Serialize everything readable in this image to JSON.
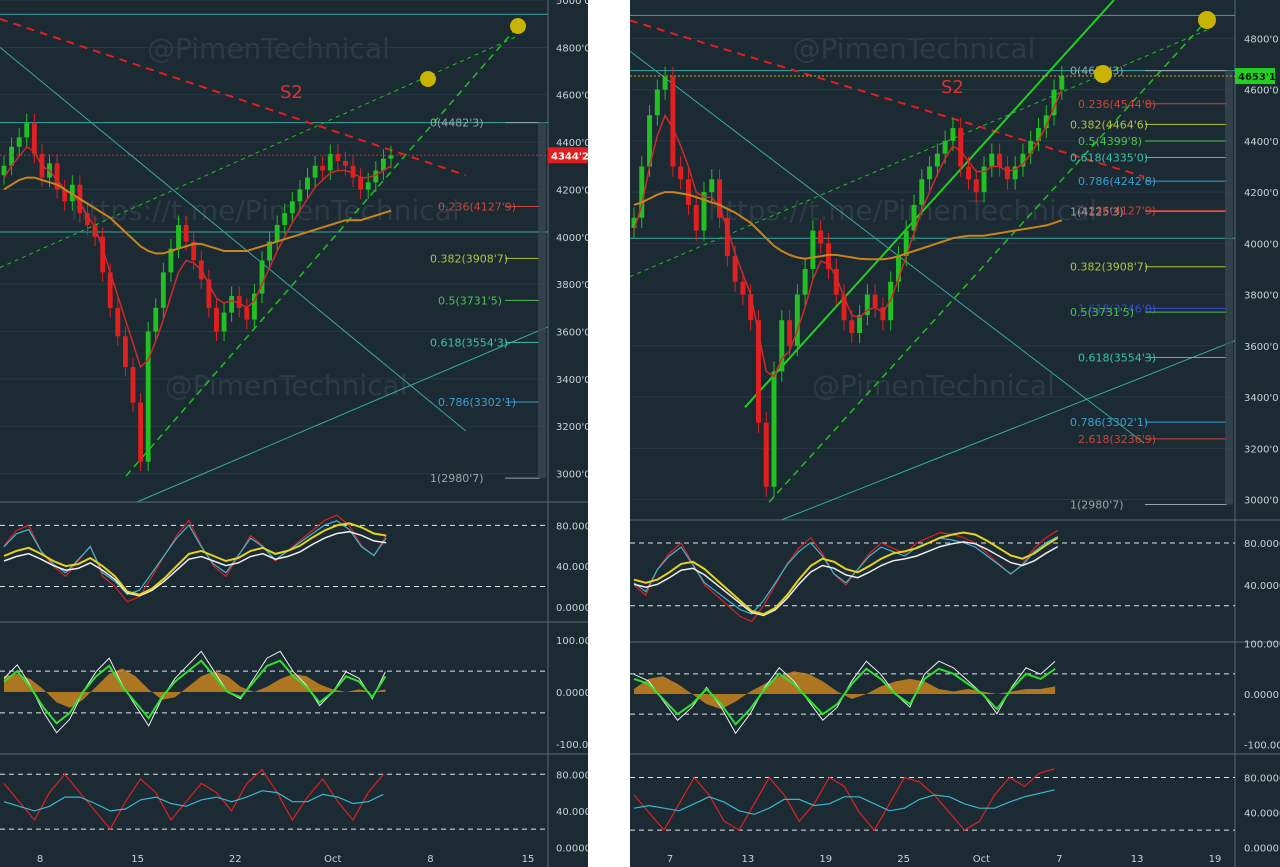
{
  "colors": {
    "background": "#1b2a33",
    "grid": "#2a3a44",
    "up": "#22c022",
    "down": "#e02020",
    "teal": "#3aa8a0",
    "fib_gray": "#9aa4aa",
    "accent_gold": "#c8b400"
  },
  "watermarks": {
    "brand": "@PimenTechnical",
    "url": "https://t.me/PimenTechnical"
  },
  "chart_data": [
    {
      "id": "left",
      "type": "candlestick",
      "annotation": "S2",
      "last_price_tag": "4344'2",
      "price_axis": {
        "ticks": [
          "5000'0",
          "4800'0",
          "4600'0",
          "4400'0",
          "4200'0",
          "4000'0",
          "3800'0",
          "3600'0",
          "3400'0",
          "3200'0",
          "3000'0"
        ],
        "ylim": [
          2880,
          5000
        ]
      },
      "x_ticks": [
        "8",
        "15",
        "22",
        "Oct",
        "8",
        "15"
      ],
      "fib_levels": [
        {
          "label": "0(4482'3)",
          "value": 4482.3,
          "color": "#9aa4aa"
        },
        {
          "label": "0.236(4127'9)",
          "value": 4127.9,
          "color": "#c8463c"
        },
        {
          "label": "0.382(3908'7)",
          "value": 3908.7,
          "color": "#b7c23a"
        },
        {
          "label": "0.5(3731'5)",
          "value": 3731.5,
          "color": "#4cc24c"
        },
        {
          "label": "0.618(3554'3)",
          "value": 3554.3,
          "color": "#3ac2a8"
        },
        {
          "label": "0.786(3302'1)",
          "value": 3302.1,
          "color": "#3aa0d2"
        },
        {
          "label": "1(2980'7)",
          "value": 2980.7,
          "color": "#9aa4aa"
        }
      ],
      "osc1_ticks": [
        "80.0000",
        "40.0000",
        "0.0000"
      ],
      "osc2_ticks": [
        "100.0000",
        "0.0000",
        "-100.0000"
      ],
      "osc3_ticks": [
        "80.0000",
        "40.0000",
        "0.0000"
      ],
      "series": {
        "close": [
          4300,
          4380,
          4420,
          4480,
          4350,
          4250,
          4310,
          4200,
          4150,
          4220,
          4100,
          4050,
          4000,
          3850,
          3700,
          3580,
          3450,
          3300,
          3050,
          3600,
          3700,
          3850,
          3950,
          4050,
          3980,
          3900,
          3820,
          3700,
          3600,
          3680,
          3750,
          3700,
          3650,
          3760,
          3900,
          3980,
          4050,
          4100,
          4150,
          4200,
          4250,
          4300,
          4280,
          4350,
          4320,
          4300,
          4250,
          4200,
          4230,
          4280,
          4330,
          4344
        ],
        "ma_fast": [
          4250,
          4300,
          4340,
          4380,
          4360,
          4300,
          4280,
          4240,
          4200,
          4180,
          4140,
          4090,
          4040,
          3950,
          3850,
          3750,
          3650,
          3550,
          3450,
          3480,
          3560,
          3650,
          3750,
          3850,
          3900,
          3890,
          3860,
          3800,
          3740,
          3720,
          3730,
          3720,
          3700,
          3730,
          3800,
          3870,
          3940,
          4000,
          4060,
          4110,
          4160,
          4210,
          4240,
          4270,
          4280,
          4280,
          4270,
          4250,
          4250,
          4260,
          4280,
          4300
        ],
        "ma_slow": [
          4200,
          4220,
          4240,
          4250,
          4250,
          4240,
          4230,
          4220,
          4200,
          4180,
          4160,
          4140,
          4120,
          4100,
          4080,
          4050,
          4020,
          3990,
          3960,
          3940,
          3930,
          3930,
          3940,
          3950,
          3960,
          3970,
          3970,
          3960,
          3950,
          3940,
          3940,
          3940,
          3940,
          3950,
          3960,
          3970,
          3980,
          3990,
          4000,
          4010,
          4020,
          4030,
          4040,
          4050,
          4060,
          4070,
          4070,
          4070,
          4080,
          4090,
          4100,
          4110
        ],
        "osc1_a": [
          60,
          75,
          80,
          55,
          40,
          30,
          45,
          60,
          30,
          20,
          5,
          10,
          30,
          50,
          70,
          85,
          60,
          40,
          30,
          50,
          70,
          60,
          45,
          55,
          65,
          75,
          85,
          90,
          80,
          60,
          50,
          70
        ],
        "osc1_b": [
          50,
          55,
          58,
          52,
          45,
          40,
          42,
          48,
          40,
          30,
          15,
          12,
          18,
          28,
          40,
          52,
          55,
          50,
          45,
          48,
          55,
          58,
          52,
          55,
          60,
          68,
          75,
          80,
          82,
          78,
          72,
          70
        ],
        "osc2_main": [
          20,
          40,
          10,
          -30,
          -60,
          -40,
          0,
          30,
          50,
          10,
          -20,
          -50,
          -10,
          20,
          40,
          60,
          30,
          0,
          -10,
          20,
          50,
          60,
          30,
          10,
          -20,
          0,
          30,
          20,
          -10,
          30
        ],
        "osc2_hist": [
          30,
          35,
          25,
          5,
          -20,
          -30,
          -15,
          10,
          35,
          45,
          30,
          5,
          -15,
          -10,
          10,
          30,
          40,
          30,
          10,
          0,
          10,
          25,
          35,
          30,
          15,
          5,
          0,
          5,
          0,
          5
        ],
        "osc3_a": [
          70,
          50,
          30,
          60,
          80,
          60,
          40,
          20,
          50,
          75,
          60,
          30,
          50,
          70,
          60,
          40,
          70,
          85,
          60,
          30,
          55,
          75,
          50,
          30,
          60,
          80
        ],
        "osc3_b": [
          50,
          45,
          40,
          45,
          55,
          55,
          48,
          40,
          42,
          52,
          55,
          48,
          45,
          52,
          55,
          50,
          55,
          62,
          60,
          50,
          50,
          58,
          55,
          48,
          50,
          58
        ]
      }
    },
    {
      "id": "right",
      "type": "candlestick",
      "annotation": "S2",
      "last_price_tag": "4653'1",
      "price_axis": {
        "ticks": [
          "4800'0",
          "4600'0",
          "4400'0",
          "4200'0",
          "4000'0",
          "3800'0",
          "3600'0",
          "3400'0",
          "3200'0",
          "3000'0"
        ],
        "ylim": [
          2920,
          4950
        ]
      },
      "x_ticks": [
        "7",
        "13",
        "19",
        "25",
        "Oct",
        "7",
        "13",
        "19"
      ],
      "fib_levels": [
        {
          "label": "0(4674'3)",
          "value": 4674.3,
          "color": "#9aa4aa"
        },
        {
          "label": "0.236(4544'8)",
          "value": 4544.8,
          "color": "#c8463c"
        },
        {
          "label": "0.382(4464'6)",
          "value": 4464.6,
          "color": "#b7c23a"
        },
        {
          "label": "0.5(4399'8)",
          "value": 4399.8,
          "color": "#4cc24c"
        },
        {
          "label": "0.618(4335'0)",
          "value": 4335.0,
          "color": "#3ac2a8"
        },
        {
          "label": "0.786(4242'8)",
          "value": 4242.8,
          "color": "#3aa0d2"
        },
        {
          "label": "1(4125'3)",
          "value": 4125.3,
          "color": "#9aa4aa"
        },
        {
          "label": "0.236(4127'9)",
          "value": 4127.9,
          "color": "#c8463c"
        },
        {
          "label": "0.382(3908'7)",
          "value": 3908.7,
          "color": "#b7c23a"
        },
        {
          "label": "1.618(3746'0)",
          "value": 3746.0,
          "color": "#3a4ad2"
        },
        {
          "label": "0.5(3731'5)",
          "value": 3731.5,
          "color": "#4cc24c"
        },
        {
          "label": "0.618(3554'3)",
          "value": 3554.3,
          "color": "#3ac2a8"
        },
        {
          "label": "0.786(3302'1)",
          "value": 3302.1,
          "color": "#3aa0d2"
        },
        {
          "label": "2.618(3236'9)",
          "value": 3236.9,
          "color": "#c8463c"
        },
        {
          "label": "1(2980'7)",
          "value": 2980.7,
          "color": "#9aa4aa"
        }
      ],
      "osc1_ticks": [
        "80.0000",
        "40.0000"
      ],
      "osc2_ticks": [
        "100.0000",
        "0.0000",
        "-100.0000"
      ],
      "osc3_ticks": [
        "80.0000",
        "40.0000",
        "0.0000"
      ],
      "series": {
        "close": [
          4100,
          4300,
          4500,
          4600,
          4650,
          4300,
          4250,
          4150,
          4050,
          4200,
          4250,
          4100,
          3950,
          3850,
          3800,
          3700,
          3300,
          3050,
          3500,
          3700,
          3600,
          3800,
          3900,
          4050,
          4000,
          3900,
          3800,
          3700,
          3650,
          3720,
          3800,
          3750,
          3700,
          3850,
          3950,
          4050,
          4150,
          4250,
          4300,
          4350,
          4400,
          4450,
          4300,
          4250,
          4200,
          4300,
          4350,
          4300,
          4250,
          4300,
          4350,
          4400,
          4450,
          4500,
          4600,
          4653
        ],
        "ma_fast": [
          4050,
          4150,
          4300,
          4420,
          4500,
          4450,
          4380,
          4300,
          4200,
          4180,
          4180,
          4140,
          4060,
          3960,
          3880,
          3800,
          3650,
          3500,
          3480,
          3550,
          3580,
          3660,
          3750,
          3860,
          3930,
          3920,
          3870,
          3790,
          3720,
          3710,
          3740,
          3750,
          3730,
          3780,
          3860,
          3950,
          4040,
          4130,
          4200,
          4270,
          4330,
          4380,
          4360,
          4320,
          4280,
          4280,
          4300,
          4300,
          4280,
          4290,
          4310,
          4350,
          4400,
          4460,
          4530,
          4600
        ],
        "ma_slow": [
          4150,
          4160,
          4175,
          4190,
          4200,
          4200,
          4195,
          4190,
          4180,
          4170,
          4160,
          4150,
          4135,
          4120,
          4100,
          4080,
          4050,
          4020,
          3990,
          3970,
          3955,
          3945,
          3940,
          3945,
          3950,
          3955,
          3955,
          3950,
          3945,
          3940,
          3938,
          3938,
          3938,
          3942,
          3950,
          3960,
          3970,
          3980,
          3990,
          4000,
          4010,
          4020,
          4025,
          4030,
          4030,
          4030,
          4035,
          4040,
          4045,
          4050,
          4055,
          4060,
          4065,
          4070,
          4080,
          4090
        ],
        "osc1_a": [
          40,
          30,
          55,
          70,
          80,
          60,
          40,
          30,
          20,
          10,
          5,
          20,
          40,
          60,
          75,
          85,
          70,
          50,
          40,
          55,
          70,
          80,
          75,
          70,
          80,
          85,
          90,
          88,
          85,
          80,
          70,
          60,
          50,
          60,
          75,
          85,
          92
        ],
        "osc1_b": [
          45,
          42,
          45,
          52,
          60,
          62,
          55,
          45,
          35,
          25,
          15,
          12,
          18,
          30,
          45,
          58,
          65,
          62,
          55,
          52,
          58,
          65,
          70,
          72,
          75,
          80,
          85,
          88,
          90,
          88,
          82,
          75,
          68,
          65,
          70,
          78,
          85
        ],
        "osc2_main": [
          30,
          20,
          -10,
          -40,
          -20,
          10,
          -20,
          -60,
          -30,
          10,
          40,
          20,
          -10,
          -40,
          -20,
          20,
          50,
          30,
          0,
          -20,
          30,
          50,
          40,
          20,
          0,
          -30,
          10,
          40,
          30,
          50
        ],
        "osc2_hist": [
          10,
          30,
          35,
          20,
          0,
          -20,
          -30,
          -15,
          5,
          20,
          35,
          45,
          40,
          25,
          5,
          -10,
          0,
          15,
          25,
          30,
          25,
          10,
          5,
          10,
          5,
          0,
          5,
          10,
          10,
          15
        ],
        "osc3_a": [
          60,
          40,
          20,
          50,
          80,
          60,
          30,
          20,
          50,
          80,
          60,
          30,
          50,
          80,
          70,
          40,
          20,
          50,
          80,
          75,
          60,
          40,
          20,
          30,
          60,
          80,
          70,
          85,
          90
        ],
        "osc3_b": [
          45,
          48,
          45,
          42,
          50,
          58,
          52,
          42,
          38,
          45,
          55,
          55,
          48,
          50,
          58,
          58,
          50,
          42,
          45,
          55,
          60,
          58,
          50,
          45,
          45,
          52,
          58,
          62,
          66
        ]
      }
    }
  ]
}
